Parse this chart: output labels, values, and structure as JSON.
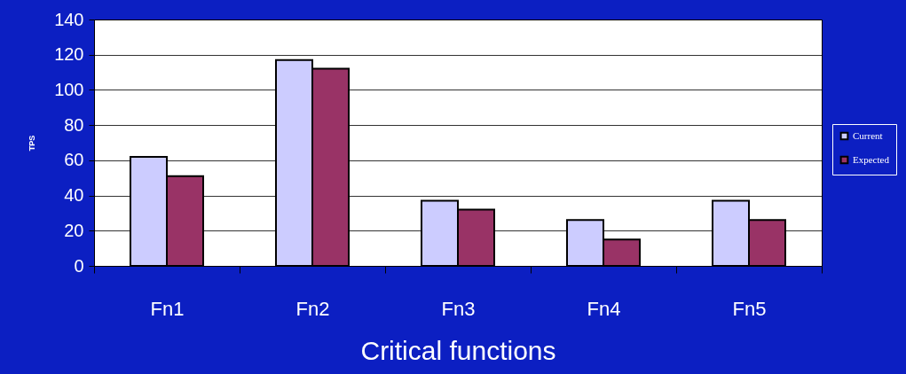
{
  "chart_data": {
    "type": "bar",
    "xlabel": "Critical functions",
    "ylabel": "TPS",
    "categories": [
      "Fn1",
      "Fn2",
      "Fn3",
      "Fn4",
      "Fn5"
    ],
    "series": [
      {
        "name": "Current",
        "color": "#ccccff",
        "values": [
          62,
          117,
          37,
          26,
          37
        ]
      },
      {
        "name": "Expected",
        "color": "#993366",
        "values": [
          51,
          112,
          32,
          15,
          26
        ]
      }
    ],
    "ylim": [
      0,
      140
    ],
    "yticks": [
      0,
      20,
      40,
      60,
      80,
      100,
      120,
      140
    ],
    "grid": "y",
    "legend": "right"
  }
}
